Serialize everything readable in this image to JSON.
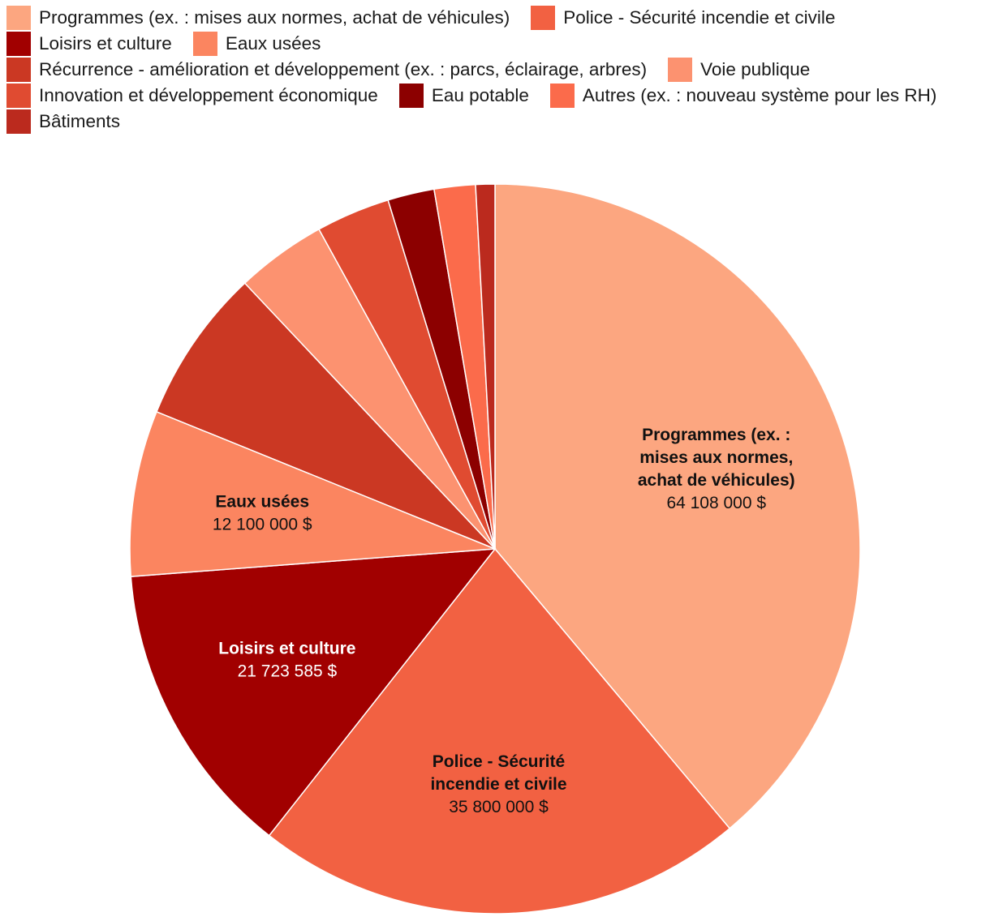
{
  "chart_data": {
    "type": "pie",
    "title": "",
    "legend_position": "top-left",
    "series": [
      {
        "name": "Programmes (ex. : mises aux normes, achat de véhicules)",
        "label_lines": [
          "Programmes (ex. :",
          "mises aux normes,",
          "achat de véhicules)"
        ],
        "value": 64108000,
        "value_label": "64 108 000 $",
        "color": "#fca680",
        "label_color": "#111111"
      },
      {
        "name": "Police - Sécurité incendie et civile",
        "label_lines": [
          "Police - Sécurité",
          "incendie et civile"
        ],
        "value": 35800000,
        "value_label": "35 800 000 $",
        "color": "#f26142",
        "label_color": "#111111"
      },
      {
        "name": "Loisirs et culture",
        "label_lines": [
          "Loisirs et culture"
        ],
        "value": 21723585,
        "value_label": "21 723 585 $",
        "color": "#a10000",
        "label_color": "#ffffff"
      },
      {
        "name": "Eaux usées",
        "label_lines": [
          "Eaux usées"
        ],
        "value": 12100000,
        "value_label": "12 100 000 $",
        "color": "#fb8560",
        "label_color": "#111111"
      },
      {
        "name": "Récurrence - amélioration et développement (ex. : parcs, éclairage, arbres)",
        "value": 11300000,
        "color": "#cb3823"
      },
      {
        "name": "Voie publique",
        "value": 6600000,
        "color": "#fc9270"
      },
      {
        "name": "Innovation et développement économique",
        "value": 5400000,
        "color": "#e04b31"
      },
      {
        "name": "Eau potable",
        "value": 3400000,
        "color": "#8c0000"
      },
      {
        "name": "Autres (ex. : nouveau système pour les RH)",
        "value": 3000000,
        "color": "#fb6b4b"
      },
      {
        "name": "Bâtiments",
        "value": 1400000,
        "color": "#bb2a1e"
      }
    ]
  },
  "legend_rows": [
    [
      0,
      1
    ],
    [
      2,
      3
    ],
    [
      4,
      5
    ],
    [
      6,
      7,
      8
    ],
    [
      9
    ]
  ]
}
